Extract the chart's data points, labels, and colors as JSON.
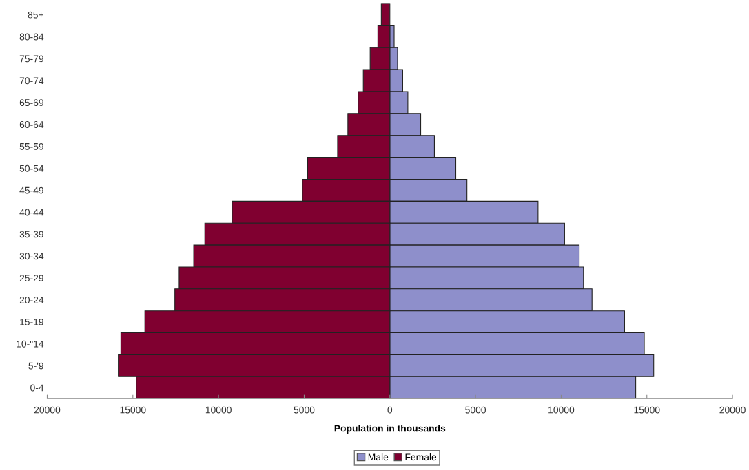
{
  "chart_data": {
    "type": "bar",
    "orientation": "horizontal",
    "xlabel": "Population in thousands",
    "categories": [
      "85+",
      "80-84",
      "75-79",
      "70-74",
      "65-69",
      "60-64",
      "55-59",
      "50-54",
      "45-49",
      "40-44",
      "35-39",
      "30-34",
      "25-29",
      "20-24",
      "15-19",
      "10-\"14",
      "5-'9",
      "0-4"
    ],
    "series": [
      {
        "name": "Male",
        "color": "#8e8fcb",
        "values": [
          null,
          250,
          450,
          750,
          1050,
          1800,
          2600,
          3850,
          4500,
          8650,
          10200,
          11050,
          11300,
          11800,
          13700,
          14850,
          15400,
          14350
        ]
      },
      {
        "name": "Female",
        "color": "#800030",
        "values": [
          -500,
          -700,
          -1150,
          -1550,
          -1850,
          -2450,
          -3050,
          -4800,
          -5100,
          -9200,
          -10800,
          -11450,
          -12300,
          -12550,
          -14300,
          -15700,
          -15850,
          -14800
        ]
      }
    ],
    "xlim": [
      -20000,
      20000
    ],
    "xticks": [
      {
        "value": -20000,
        "label": "20000"
      },
      {
        "value": -15000,
        "label": "15000"
      },
      {
        "value": -10000,
        "label": "10000"
      },
      {
        "value": -5000,
        "label": "5000"
      },
      0,
      5000,
      10000,
      15000,
      20000
    ],
    "stacked": true,
    "grid": false,
    "legend": "bottom"
  }
}
